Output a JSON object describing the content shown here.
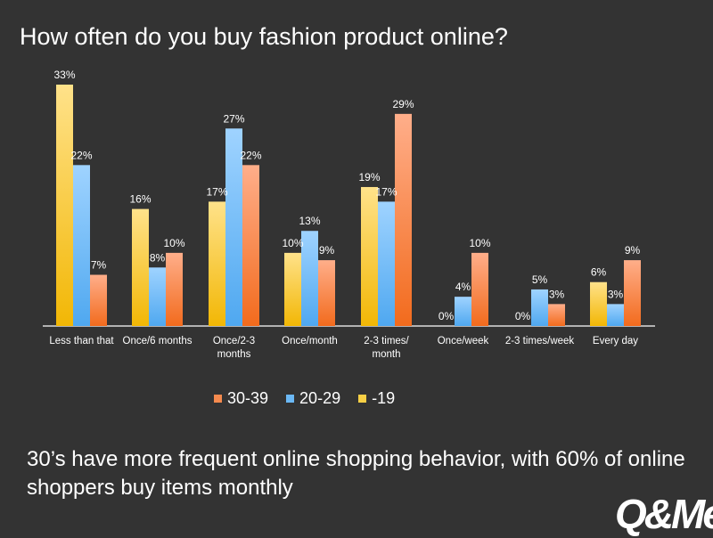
{
  "title": "How often do you buy fashion product online?",
  "caption": "30’s have more frequent online shopping behavior, with 60% of online shoppers buy items monthly",
  "logo_text": "Q&Me",
  "colors": {
    "background": "#333333",
    "age_19_top": "#ffe28a",
    "age_19_bottom": "#f2b705",
    "age_20_29_top": "#9fd3ff",
    "age_20_29_bottom": "#4fa8f0",
    "age_30_39_top": "#ffae8a",
    "age_30_39_bottom": "#f26b1d"
  },
  "chart_data": {
    "type": "bar",
    "categories": [
      [
        "Less than that"
      ],
      [
        "Once/6 months"
      ],
      [
        "Once/2-3",
        "months"
      ],
      [
        "Once/month"
      ],
      [
        "2-3 times/",
        "month"
      ],
      [
        "Once/week"
      ],
      [
        "2-3 times/week"
      ],
      [
        "Every day"
      ]
    ],
    "series": [
      {
        "name": "-19",
        "values": [
          33,
          16,
          17,
          10,
          19,
          0,
          0,
          6
        ]
      },
      {
        "name": "20-29",
        "values": [
          22,
          8,
          27,
          13,
          17,
          4,
          5,
          3
        ]
      },
      {
        "name": "30-39",
        "values": [
          7,
          10,
          22,
          9,
          29,
          10,
          3,
          9
        ]
      }
    ],
    "value_suffix": "%",
    "legend": [
      "30-39",
      "20-29",
      "-19"
    ],
    "legend_position": "bottom",
    "ylim": [
      0,
      33
    ],
    "grid": false
  }
}
